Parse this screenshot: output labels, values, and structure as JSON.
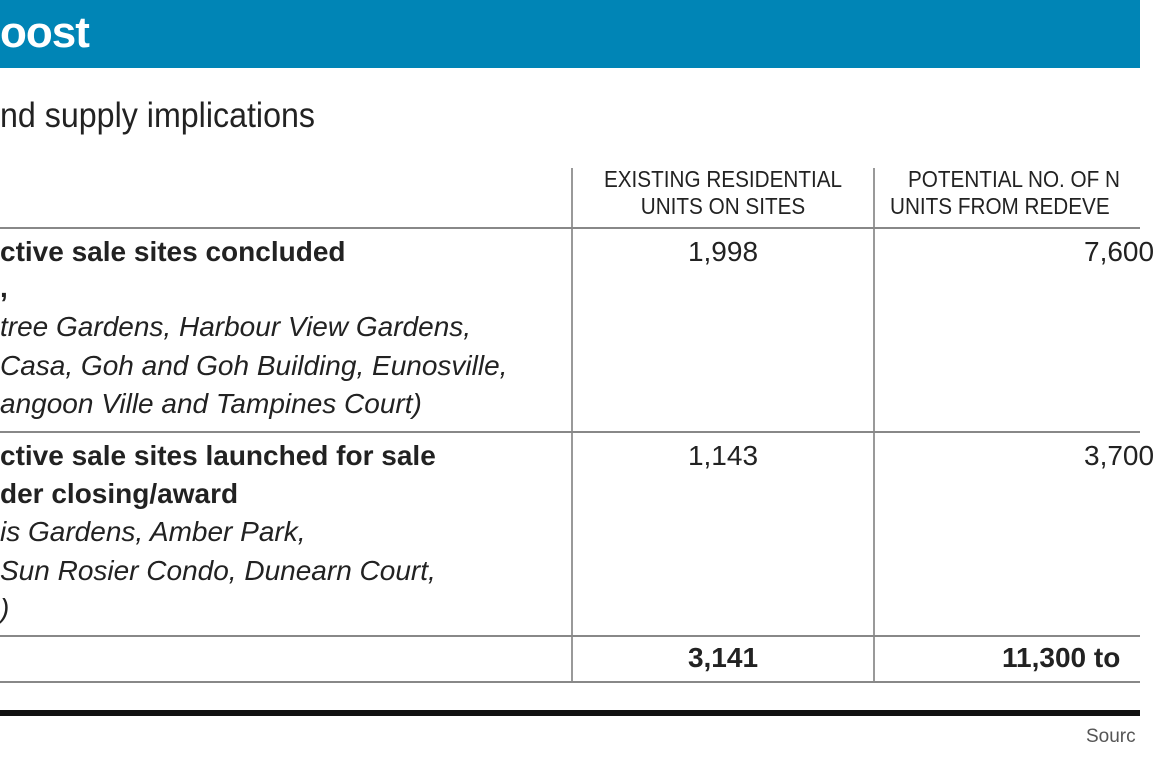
{
  "header": {
    "title": "oost",
    "subtitle": "nd supply implications",
    "accent_color": "#0085b6"
  },
  "table": {
    "columns": [
      "EXISTING RESIDENTIAL\nUNITS ON SITES",
      "POTENTIAL NO. OF N\nUNITS FROM REDEVE"
    ],
    "column_lines": [
      [
        "EXISTING RESIDENTIAL",
        "UNITS ON SITES"
      ],
      [
        "POTENTIAL NO. OF N",
        "UNITS FROM REDEVE"
      ]
    ],
    "rows": [
      {
        "title_lines": [
          "ctive sale sites concluded",
          ","
        ],
        "detail_lines": [
          "tree Gardens, Harbour View Gardens,",
          "Casa, Goh and Goh Building, Eunosville,",
          "angoon Ville and Tampines Court)"
        ],
        "existing": "1,998",
        "potential": "7,600"
      },
      {
        "title_lines": [
          "ctive sale sites launched for sale",
          "der closing/award"
        ],
        "detail_lines": [
          "is Gardens, Amber Park,",
          "Sun Rosier Condo, Dunearn Court,",
          ")"
        ],
        "existing": "1,143",
        "potential": "3,700"
      }
    ],
    "total": {
      "existing": "3,141",
      "potential": "11,300 to"
    }
  },
  "footer": {
    "source": "Sourc"
  }
}
